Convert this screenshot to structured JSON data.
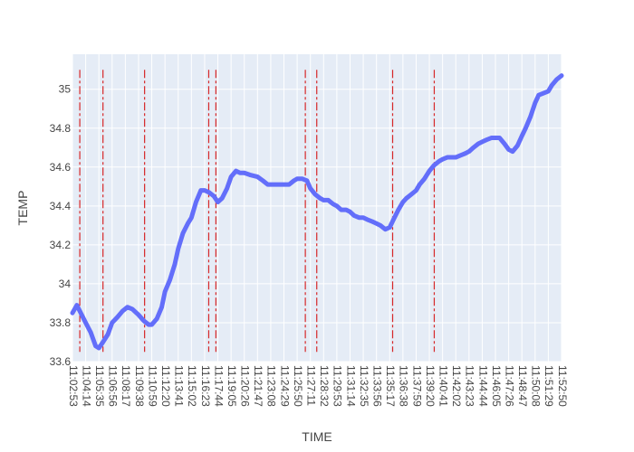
{
  "chart_data": {
    "type": "line",
    "xlabel": "TIME",
    "ylabel": "TEMP",
    "ylim": [
      33.6,
      35.18
    ],
    "grid": true,
    "x_tick_labels": [
      "11:02:53",
      "11:04:14",
      "11:05:35",
      "11:06:56",
      "11:08:17",
      "11:09:38",
      "11:10:59",
      "11:12:20",
      "11:13:41",
      "11:15:02",
      "11:16:23",
      "11:17:44",
      "11:19:05",
      "11:20:26",
      "11:21:47",
      "11:23:08",
      "11:24:29",
      "11:25:50",
      "11:27:11",
      "11:28:32",
      "11:29:53",
      "11:31:14",
      "11:32:35",
      "11:33:56",
      "11:35:17",
      "11:36:38",
      "11:37:59",
      "11:39:20",
      "11:40:41",
      "11:42:02",
      "11:43:23",
      "11:44:44",
      "11:46:05",
      "11:47:26",
      "11:48:47",
      "11:50:08",
      "11:51:29",
      "11:52:50"
    ],
    "y_ticks": [
      33.6,
      33.8,
      34,
      34.2,
      34.4,
      34.6,
      34.8,
      35
    ],
    "y_tick_labels": [
      "33.6",
      "33.8",
      "34",
      "34.2",
      "34.4",
      "34.6",
      "34.8",
      "35"
    ],
    "series": [
      {
        "color": "#636efa",
        "x": [
          "11:02:53",
          "11:03:20",
          "11:03:50",
          "11:04:14",
          "11:04:45",
          "11:05:15",
          "11:05:35",
          "11:06:00",
          "11:06:30",
          "11:06:56",
          "11:07:30",
          "11:08:00",
          "11:08:30",
          "11:09:00",
          "11:09:38",
          "11:10:10",
          "11:10:40",
          "11:10:59",
          "11:11:30",
          "11:12:00",
          "11:12:20",
          "11:12:50",
          "11:13:20",
          "11:13:41",
          "11:14:10",
          "11:14:40",
          "11:15:02",
          "11:15:30",
          "11:16:00",
          "11:16:23",
          "11:16:50",
          "11:17:20",
          "11:17:44",
          "11:18:10",
          "11:18:40",
          "11:19:05",
          "11:19:35",
          "11:20:00",
          "11:20:26",
          "11:21:00",
          "11:21:47",
          "11:22:20",
          "11:22:50",
          "11:23:08",
          "11:23:40",
          "11:24:10",
          "11:24:29",
          "11:25:00",
          "11:25:30",
          "11:25:50",
          "11:26:20",
          "11:26:50",
          "11:27:11",
          "11:27:40",
          "11:28:10",
          "11:28:32",
          "11:29:00",
          "11:29:30",
          "11:29:53",
          "11:30:20",
          "11:30:50",
          "11:31:14",
          "11:31:40",
          "11:32:10",
          "11:32:35",
          "11:33:00",
          "11:33:30",
          "11:33:56",
          "11:34:20",
          "11:34:50",
          "11:35:17",
          "11:35:40",
          "11:36:10",
          "11:36:38",
          "11:37:00",
          "11:37:30",
          "11:37:59",
          "11:38:20",
          "11:38:50",
          "11:39:20",
          "11:39:50",
          "11:40:20",
          "11:40:41",
          "11:41:10",
          "11:41:40",
          "11:42:02",
          "11:42:30",
          "11:43:00",
          "11:43:23",
          "11:43:50",
          "11:44:20",
          "11:44:44",
          "11:45:10",
          "11:45:40",
          "11:46:05",
          "11:46:30",
          "11:47:00",
          "11:47:26",
          "11:47:50",
          "11:48:20",
          "11:48:47",
          "11:49:10",
          "11:49:40",
          "11:50:08",
          "11:50:30",
          "11:51:00",
          "11:51:29",
          "11:51:50",
          "11:52:20",
          "11:52:50"
        ],
        "y": [
          33.85,
          33.89,
          33.84,
          33.8,
          33.75,
          33.68,
          33.67,
          33.7,
          33.74,
          33.8,
          33.83,
          33.86,
          33.88,
          33.87,
          33.84,
          33.81,
          33.79,
          33.79,
          33.82,
          33.88,
          33.96,
          34.02,
          34.1,
          34.18,
          34.26,
          34.31,
          34.34,
          34.42,
          34.48,
          34.48,
          34.47,
          34.45,
          34.42,
          34.44,
          34.49,
          34.55,
          34.58,
          34.57,
          34.57,
          34.56,
          34.55,
          34.53,
          34.51,
          34.51,
          34.51,
          34.51,
          34.51,
          34.51,
          34.53,
          34.54,
          34.54,
          34.53,
          34.49,
          34.46,
          34.44,
          34.43,
          34.43,
          34.41,
          34.4,
          34.38,
          34.38,
          34.37,
          34.35,
          34.34,
          34.34,
          34.33,
          34.32,
          34.31,
          34.3,
          34.28,
          34.29,
          34.33,
          34.38,
          34.42,
          34.44,
          34.46,
          34.48,
          34.51,
          34.54,
          34.58,
          34.61,
          34.63,
          34.64,
          34.65,
          34.65,
          34.65,
          34.66,
          34.67,
          34.68,
          34.7,
          34.72,
          34.73,
          34.74,
          34.75,
          34.75,
          34.75,
          34.72,
          34.69,
          34.68,
          34.71,
          34.76,
          34.8,
          34.86,
          34.93,
          34.97,
          34.98,
          34.99,
          35.02,
          35.05,
          35.07
        ]
      }
    ],
    "vlines": [
      {
        "x": "11:03:38",
        "color": "#d62728",
        "style": "dashdot"
      },
      {
        "x": "11:06:00",
        "color": "#d62728",
        "style": "dashdot"
      },
      {
        "x": "11:10:15",
        "color": "#d62728",
        "style": "dashdot"
      },
      {
        "x": "11:16:48",
        "color": "#d62728",
        "style": "dashdot"
      },
      {
        "x": "11:17:32",
        "color": "#d62728",
        "style": "dashdot"
      },
      {
        "x": "11:26:40",
        "color": "#d62728",
        "style": "dashdot"
      },
      {
        "x": "11:27:50",
        "color": "#d62728",
        "style": "dashdot"
      },
      {
        "x": "11:35:35",
        "color": "#d62728",
        "style": "dashdot"
      },
      {
        "x": "11:39:50",
        "color": "#d62728",
        "style": "dashdot"
      }
    ]
  }
}
